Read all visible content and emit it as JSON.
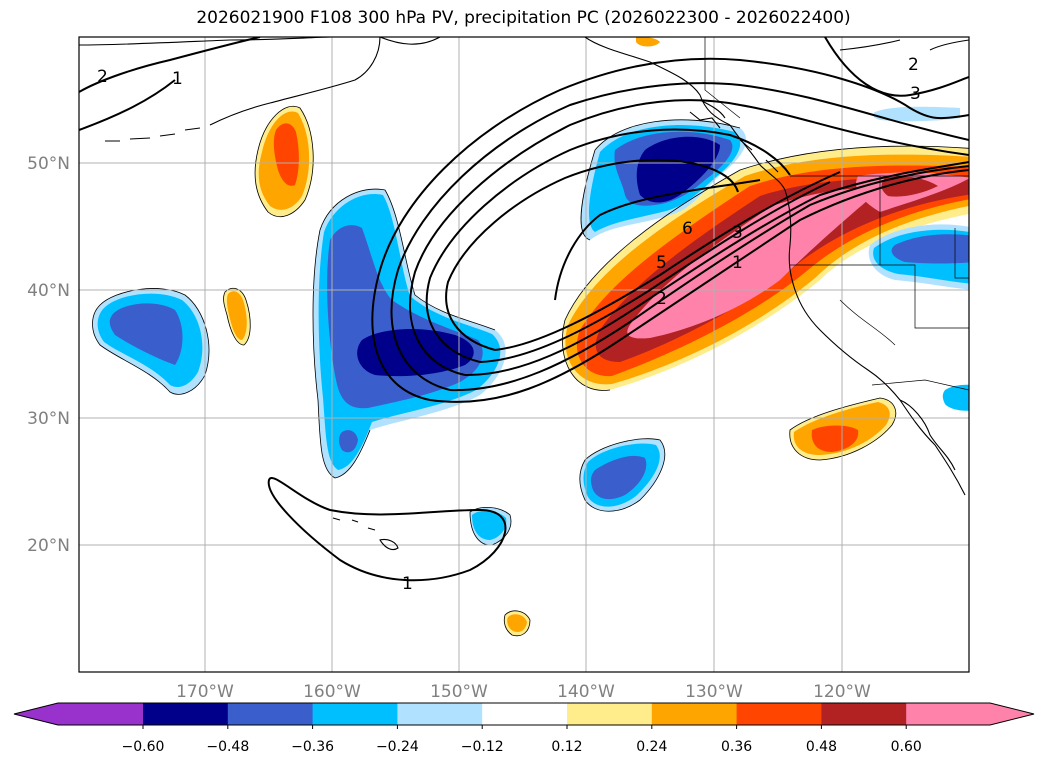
{
  "title": "2026021900 F108 300 hPa PV, precipitation PC (2026022300 - 2026022400)",
  "map": {
    "lat_labels": [
      "50°N",
      "40°N",
      "30°N",
      "20°N"
    ],
    "lon_labels": [
      "170°W",
      "160°W",
      "150°W",
      "140°W",
      "130°W",
      "120°W"
    ],
    "contour_labels": {
      "pv_1_south": "1",
      "pv_1_nw": "1",
      "pv_2_nw": "2",
      "pv_2_ne": "2",
      "pv_3_ne": "3",
      "pv_3_center": "3",
      "pv_1_center": "1",
      "pv_2_center": "2",
      "pv_5_center": "5",
      "pv_6_center": "6"
    }
  },
  "colorbar": {
    "labels": [
      "−0.60",
      "−0.48",
      "−0.36",
      "−0.24",
      "−0.12",
      "0.12",
      "0.24",
      "0.36",
      "0.48",
      "0.60"
    ],
    "colors": [
      "#9932cc",
      "#00008b",
      "#3a5fcd",
      "#00bfff",
      "#b0e2ff",
      "#ffffff",
      "#ffec8b",
      "#ffa500",
      "#ff4500",
      "#b22222",
      "#ff82ab"
    ]
  }
}
